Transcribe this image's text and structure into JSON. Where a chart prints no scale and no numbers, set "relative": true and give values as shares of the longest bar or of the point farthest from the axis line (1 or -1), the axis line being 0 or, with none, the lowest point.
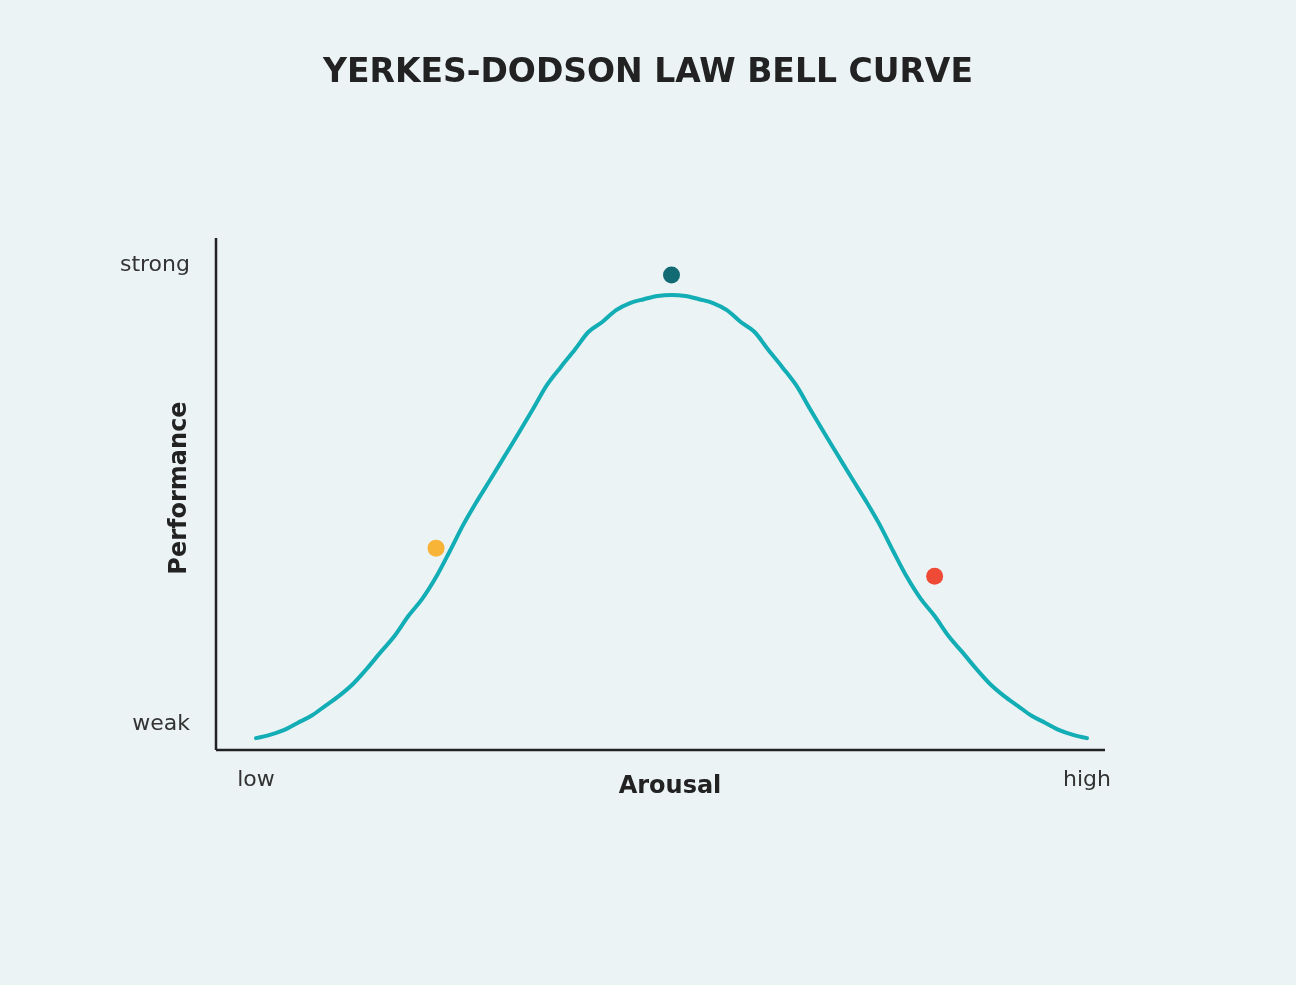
{
  "chart_data": {
    "type": "line",
    "title": "YERKES-DODSON LAW BELL CURVE",
    "xlabel": "Arousal",
    "ylabel": "Performance",
    "relative": true,
    "annotations": [
      "weak",
      "strong"
    ],
    "categories": [
      "low",
      null,
      null,
      null,
      null,
      null,
      null,
      null,
      null,
      null,
      null,
      null,
      null,
      null,
      null,
      null,
      null,
      null,
      null,
      null,
      null,
      null,
      null,
      null,
      null,
      null,
      null,
      null,
      null,
      null,
      null,
      null,
      null,
      null,
      null,
      null,
      null,
      null,
      null,
      null,
      null,
      null,
      null,
      null,
      null,
      null,
      null,
      null,
      null,
      null,
      null,
      null,
      null,
      null,
      null,
      null,
      null,
      null,
      null,
      null,
      "high"
    ],
    "grid": false,
    "line_style": "solid",
    "series": [
      {
        "marker": "none",
        "color": "#12adb5",
        "values": [
          0.025,
          0.032,
          0.042,
          0.057,
          0.072,
          0.093,
          0.114,
          0.139,
          0.171,
          0.206,
          0.24,
          0.282,
          0.318,
          0.364,
          0.419,
          0.476,
          0.526,
          0.573,
          0.621,
          0.669,
          0.718,
          0.768,
          0.806,
          0.842,
          0.88,
          0.901,
          0.926,
          0.941,
          0.949,
          0.956,
          0.958,
          0.956,
          0.949,
          0.941,
          0.926,
          0.901,
          0.88,
          0.842,
          0.806,
          0.768,
          0.718,
          0.669,
          0.621,
          0.573,
          0.526,
          0.476,
          0.419,
          0.364,
          0.318,
          0.282,
          0.24,
          0.206,
          0.171,
          0.139,
          0.114,
          0.093,
          0.072,
          0.057,
          0.042,
          0.032,
          0.025
        ]
      },
      {
        "type": "scatter",
        "marker": "circle",
        "values": [
          null,
          null,
          null,
          null,
          null,
          null,
          null,
          null,
          null,
          null,
          null,
          null,
          null,
          0.425,
          null,
          null,
          null,
          null,
          null,
          null,
          null,
          null,
          null,
          null,
          null,
          null,
          null,
          null,
          null,
          null,
          1,
          null,
          null,
          null,
          null,
          null,
          null,
          null,
          null,
          null,
          null,
          null,
          null,
          null,
          null,
          null,
          null,
          null,
          null,
          0.366,
          null,
          null,
          null,
          null,
          null,
          null,
          null,
          null,
          null,
          null,
          null
        ],
        "colors": [
          null,
          null,
          null,
          null,
          null,
          null,
          null,
          null,
          null,
          null,
          null,
          null,
          null,
          "#f8b437",
          null,
          null,
          null,
          null,
          null,
          null,
          null,
          null,
          null,
          null,
          null,
          null,
          null,
          null,
          null,
          null,
          "#126a73",
          null,
          null,
          null,
          null,
          null,
          null,
          null,
          null,
          null,
          null,
          null,
          null,
          null,
          null,
          null,
          null,
          null,
          null,
          "#ee4a36",
          null,
          null,
          null,
          null,
          null,
          null,
          null,
          null,
          null,
          null,
          null
        ]
      }
    ]
  }
}
